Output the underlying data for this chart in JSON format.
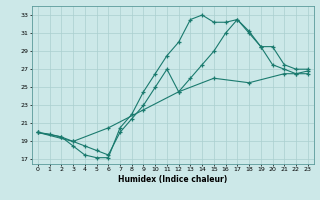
{
  "xlabel": "Humidex (Indice chaleur)",
  "background_color": "#cce8e8",
  "grid_color": "#aacfcf",
  "line_color": "#1a7a6e",
  "xlim": [
    -0.5,
    23.5
  ],
  "ylim": [
    16.5,
    34.0
  ],
  "xticks": [
    0,
    1,
    2,
    3,
    4,
    5,
    6,
    7,
    8,
    9,
    10,
    11,
    12,
    13,
    14,
    15,
    16,
    17,
    18,
    19,
    20,
    21,
    22,
    23
  ],
  "yticks": [
    17,
    19,
    21,
    23,
    25,
    27,
    29,
    31,
    33
  ],
  "line1_x": [
    0,
    1,
    2,
    3,
    4,
    5,
    6,
    7,
    8,
    9,
    10,
    11,
    12,
    13,
    14,
    15,
    16,
    17,
    18,
    19,
    20,
    21,
    22,
    23
  ],
  "line1_y": [
    20.0,
    19.8,
    19.5,
    18.5,
    17.5,
    17.2,
    17.2,
    20.5,
    22.0,
    24.5,
    26.5,
    28.5,
    30.0,
    32.5,
    33.0,
    32.2,
    32.2,
    32.5,
    31.2,
    29.5,
    27.5,
    27.0,
    26.5,
    26.5
  ],
  "line2_x": [
    0,
    2,
    3,
    4,
    5,
    6,
    7,
    8,
    9,
    10,
    11,
    12,
    13,
    14,
    15,
    16,
    17,
    18,
    19,
    20,
    21,
    22,
    23
  ],
  "line2_y": [
    20.0,
    19.5,
    19.0,
    18.5,
    18.0,
    17.5,
    20.0,
    21.5,
    23.0,
    25.0,
    27.0,
    24.5,
    26.0,
    27.5,
    29.0,
    31.0,
    32.5,
    31.0,
    29.5,
    29.5,
    27.5,
    27.0,
    27.0
  ],
  "line3_x": [
    0,
    3,
    6,
    9,
    12,
    15,
    18,
    21,
    22,
    23
  ],
  "line3_y": [
    20.0,
    19.0,
    20.5,
    22.5,
    24.5,
    26.0,
    25.5,
    26.5,
    26.5,
    26.8
  ]
}
